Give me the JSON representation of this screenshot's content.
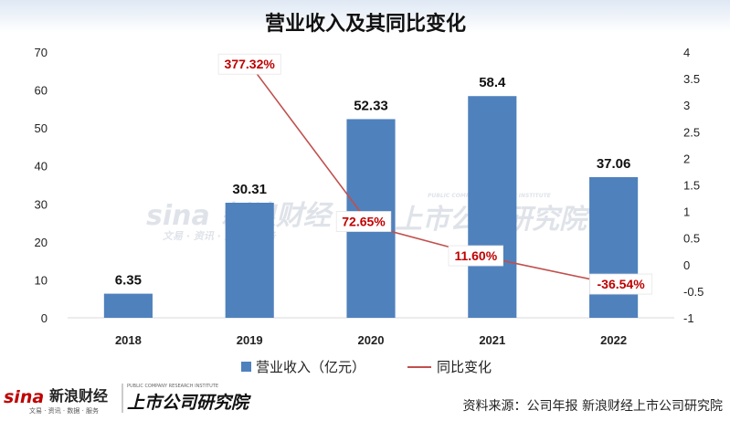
{
  "chart_data": {
    "type": "bar",
    "title": "营业收入及其同比变化",
    "categories": [
      "2018",
      "2019",
      "2020",
      "2021",
      "2022"
    ],
    "series": [
      {
        "name": "营业收入（亿元）",
        "type": "bar",
        "axis": "left",
        "values": [
          6.35,
          30.31,
          52.33,
          58.4,
          37.06
        ],
        "labels": [
          "6.35",
          "30.31",
          "52.33",
          "58.4",
          "37.06"
        ],
        "color": "#4f81bd"
      },
      {
        "name": "同比变化",
        "type": "line",
        "axis": "right",
        "values": [
          null,
          3.7732,
          0.7265,
          0.116,
          -0.3654
        ],
        "labels": [
          null,
          "377.32%",
          "72.65%",
          "11.60%",
          "-36.54%"
        ],
        "color": "#c0504d"
      }
    ],
    "left_axis": {
      "ylim": [
        0,
        70
      ],
      "ticks": [
        "0",
        "10",
        "20",
        "30",
        "40",
        "50",
        "60",
        "70"
      ]
    },
    "right_axis": {
      "ylim": [
        -1,
        4
      ],
      "ticks": [
        "-1",
        "-0.5",
        "0",
        "0.5",
        "1",
        "1.5",
        "2",
        "2.5",
        "3",
        "3.5",
        "4"
      ]
    },
    "legend_position": "bottom",
    "grid": false
  },
  "source": "资料来源：公司年报 新浪财经上市公司研究院",
  "watermark": {
    "brand": "sina",
    "cn": "新浪财经",
    "sub": "文易 · 资讯 · 数据 · 服务",
    "institute": "上市公司研究院",
    "institute_en": "PUBLIC COMPANY RESEARCH INSTITUTE"
  },
  "colors": {
    "bar": "#4f81bd",
    "line": "#c0504d",
    "pct_text": "#c00000",
    "logo_red": "#c00000"
  }
}
